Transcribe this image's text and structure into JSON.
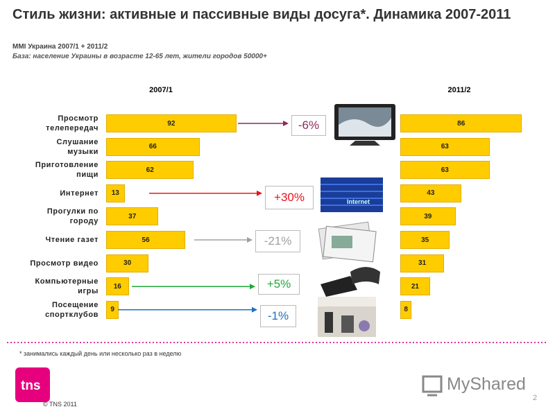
{
  "header": {
    "title": "Стиль жизни: активные и пассивные виды досуга*. Динамика 2007-2011",
    "subtitle": "MMI Украина 2007/1 + 2011/2",
    "base": "База: население Украины в возрасте 12-65 лет, жители городов 50000+"
  },
  "chart_data": [
    {
      "type": "bar",
      "orientation": "horizontal",
      "title": "2007/1",
      "categories": [
        "Просмотр телепередач",
        "Слушание музыки",
        "Приготовление пищи",
        "Интернет",
        "Прогулки по городу",
        "Чтение газет",
        "Просмотр видео",
        "Компьютерные игры",
        "Посещение спортклубов"
      ],
      "values": [
        92,
        66,
        62,
        13,
        37,
        56,
        30,
        16,
        9
      ],
      "color": "#ffcc00"
    },
    {
      "type": "bar",
      "orientation": "horizontal",
      "title": "2011/2",
      "values": [
        86,
        63,
        63,
        43,
        39,
        35,
        31,
        21,
        8
      ],
      "color": "#ffcc00"
    }
  ],
  "annotations": [
    {
      "label": "-6%",
      "color": "#8b2a5a"
    },
    {
      "label": "+30%",
      "color": "#e8141e"
    },
    {
      "label": "-21%",
      "color": "#a0a0a0"
    },
    {
      "label": "+5%",
      "color": "#1faa3a"
    },
    {
      "label": "-1%",
      "color": "#2070c0"
    }
  ],
  "footer": {
    "note": "* занимались каждый день или несколько раз в неделю",
    "copyright": "© TNS 2011",
    "page": "2",
    "logo": "tns",
    "watermark": "MyShared"
  }
}
